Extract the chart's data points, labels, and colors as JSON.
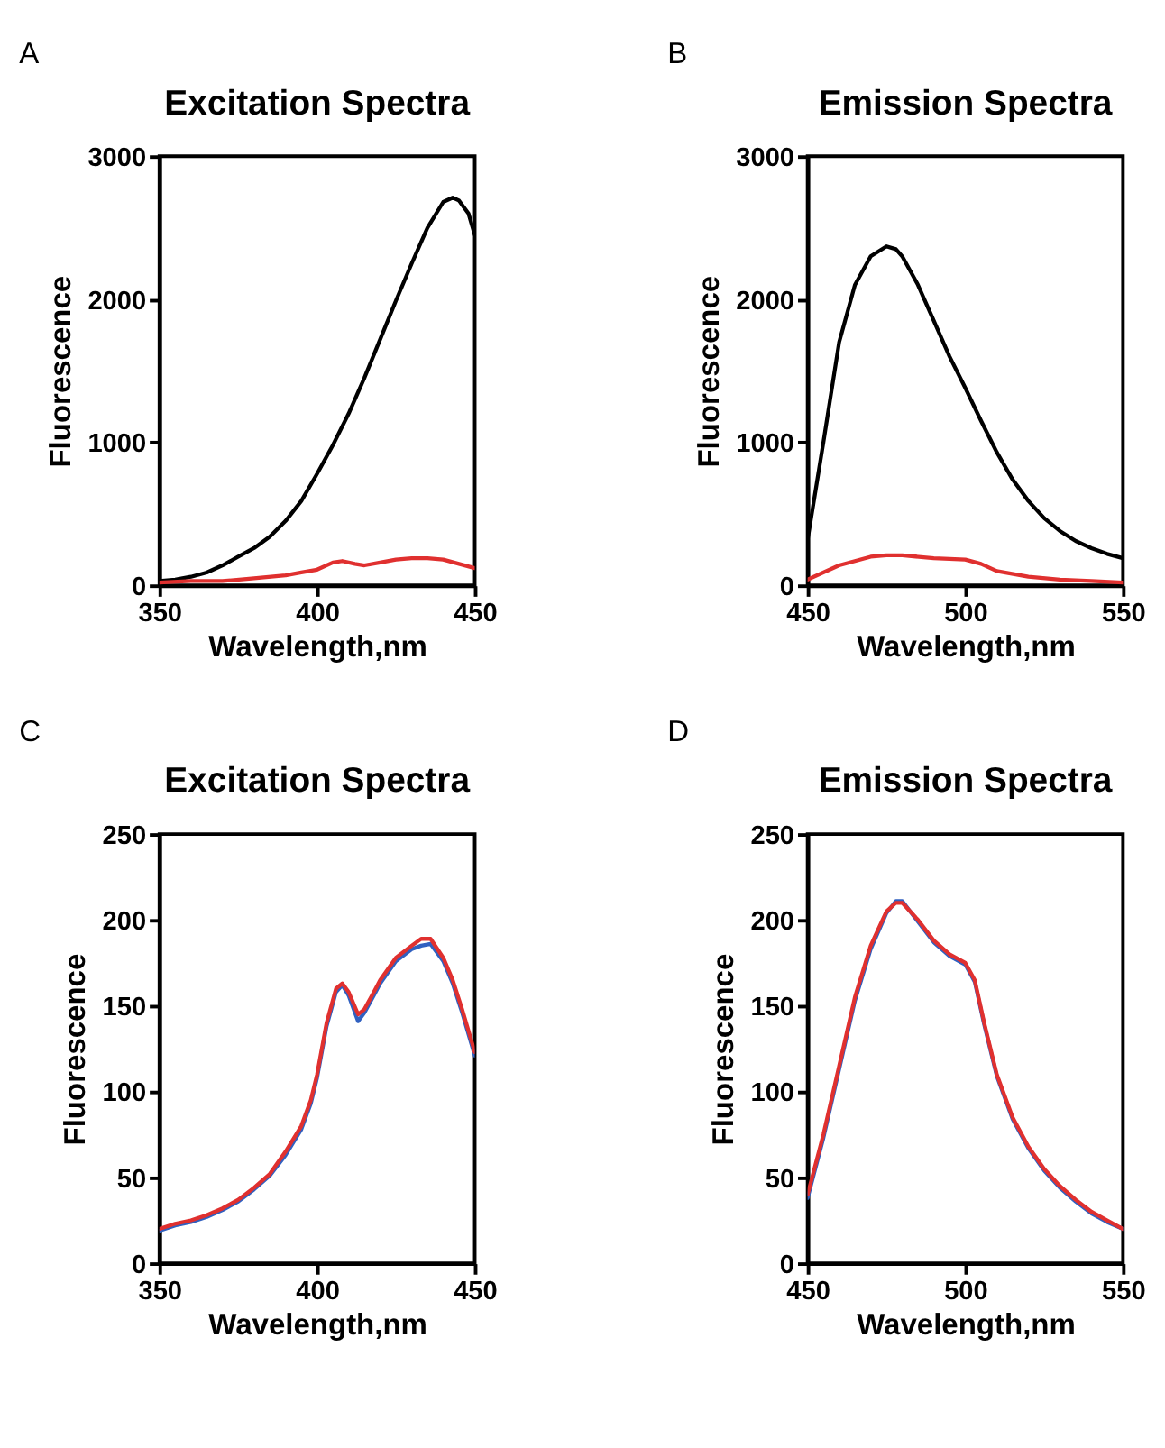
{
  "chart_data": [
    {
      "type": "line",
      "title": "Excitation Spectra",
      "xlabel": "Wavelength,nm",
      "ylabel": "Fluorescence",
      "annotations": [
        "A"
      ],
      "xlim": [
        350,
        450
      ],
      "xticks": [
        350,
        400,
        450
      ],
      "ylim": [
        0,
        3000
      ],
      "yticks": [
        0,
        1000,
        2000,
        3000
      ],
      "series": [
        {
          "color": "#000000",
          "x": [
            350,
            355,
            360,
            365,
            370,
            375,
            380,
            385,
            390,
            395,
            400,
            405,
            410,
            415,
            420,
            425,
            430,
            435,
            440,
            443,
            445,
            448,
            450
          ],
          "values": [
            30,
            40,
            60,
            90,
            140,
            200,
            260,
            340,
            450,
            590,
            780,
            980,
            1200,
            1450,
            1720,
            1990,
            2250,
            2500,
            2680,
            2710,
            2690,
            2600,
            2450
          ]
        },
        {
          "color": "#e0302f",
          "x": [
            350,
            360,
            370,
            380,
            390,
            395,
            400,
            405,
            408,
            412,
            415,
            420,
            425,
            430,
            435,
            440,
            445,
            450
          ],
          "values": [
            20,
            30,
            30,
            50,
            70,
            90,
            110,
            160,
            170,
            150,
            140,
            160,
            180,
            190,
            190,
            180,
            150,
            120
          ]
        }
      ]
    },
    {
      "type": "line",
      "title": "Emission Spectra",
      "xlabel": "Wavelength,nm",
      "ylabel": "Fluorescence",
      "annotations": [
        "B"
      ],
      "xlim": [
        450,
        550
      ],
      "xticks": [
        450,
        500,
        550
      ],
      "ylim": [
        0,
        3000
      ],
      "yticks": [
        0,
        1000,
        2000,
        3000
      ],
      "series": [
        {
          "color": "#000000",
          "x": [
            450,
            455,
            460,
            465,
            470,
            475,
            478,
            480,
            485,
            490,
            495,
            500,
            505,
            510,
            515,
            520,
            525,
            530,
            535,
            540,
            545,
            550
          ],
          "values": [
            320,
            1000,
            1700,
            2100,
            2300,
            2370,
            2350,
            2300,
            2100,
            1850,
            1600,
            1380,
            1150,
            930,
            740,
            590,
            470,
            380,
            310,
            260,
            220,
            190
          ]
        },
        {
          "color": "#e0302f",
          "x": [
            450,
            460,
            470,
            475,
            480,
            490,
            500,
            505,
            510,
            520,
            530,
            540,
            550
          ],
          "values": [
            40,
            140,
            200,
            210,
            210,
            190,
            180,
            150,
            100,
            60,
            40,
            30,
            20
          ]
        }
      ]
    },
    {
      "type": "line",
      "title": "Excitation Spectra",
      "xlabel": "Wavelength,nm",
      "ylabel": "Fluorescence",
      "annotations": [
        "C"
      ],
      "xlim": [
        350,
        450
      ],
      "xticks": [
        350,
        400,
        450
      ],
      "ylim": [
        0,
        250
      ],
      "yticks": [
        0,
        50,
        100,
        150,
        200,
        250
      ],
      "series": [
        {
          "color": "#3060c0",
          "x": [
            350,
            355,
            360,
            365,
            370,
            375,
            380,
            385,
            390,
            395,
            398,
            400,
            403,
            406,
            408,
            410,
            413,
            415,
            418,
            420,
            425,
            430,
            433,
            436,
            440,
            443,
            446,
            450
          ],
          "values": [
            19,
            22,
            24,
            27,
            31,
            36,
            43,
            51,
            63,
            78,
            93,
            108,
            138,
            158,
            162,
            156,
            141,
            146,
            156,
            163,
            176,
            183,
            185,
            186,
            176,
            163,
            146,
            121
          ]
        },
        {
          "color": "#e0302f",
          "x": [
            350,
            355,
            360,
            365,
            370,
            375,
            380,
            385,
            390,
            395,
            398,
            400,
            403,
            406,
            408,
            410,
            413,
            415,
            418,
            420,
            425,
            430,
            433,
            436,
            440,
            443,
            446,
            450
          ],
          "values": [
            20,
            23,
            25,
            28,
            32,
            37,
            44,
            52,
            65,
            80,
            95,
            110,
            140,
            160,
            163,
            158,
            145,
            148,
            158,
            165,
            178,
            185,
            189,
            189,
            178,
            165,
            148,
            123
          ]
        }
      ]
    },
    {
      "type": "line",
      "title": "Emission Spectra",
      "xlabel": "Wavelength,nm",
      "ylabel": "Fluorescence",
      "annotations": [
        "D"
      ],
      "xlim": [
        450,
        550
      ],
      "xticks": [
        450,
        500,
        550
      ],
      "ylim": [
        0,
        250
      ],
      "yticks": [
        0,
        50,
        100,
        150,
        200,
        250
      ],
      "series": [
        {
          "color": "#3060c0",
          "x": [
            450,
            455,
            460,
            465,
            470,
            475,
            478,
            480,
            485,
            490,
            495,
            500,
            503,
            506,
            510,
            515,
            520,
            525,
            530,
            535,
            540,
            545,
            550
          ],
          "values": [
            38,
            73,
            113,
            153,
            183,
            204,
            211,
            211,
            199,
            187,
            179,
            174,
            164,
            139,
            109,
            84,
            67,
            54,
            44,
            36,
            29,
            24,
            20
          ]
        },
        {
          "color": "#e0302f",
          "x": [
            450,
            455,
            460,
            465,
            470,
            475,
            478,
            480,
            485,
            490,
            495,
            500,
            503,
            506,
            510,
            515,
            520,
            525,
            530,
            535,
            540,
            545,
            550
          ],
          "values": [
            40,
            75,
            115,
            155,
            185,
            205,
            210,
            210,
            200,
            188,
            180,
            175,
            165,
            140,
            110,
            85,
            68,
            55,
            45,
            37,
            30,
            25,
            20
          ]
        }
      ]
    }
  ]
}
